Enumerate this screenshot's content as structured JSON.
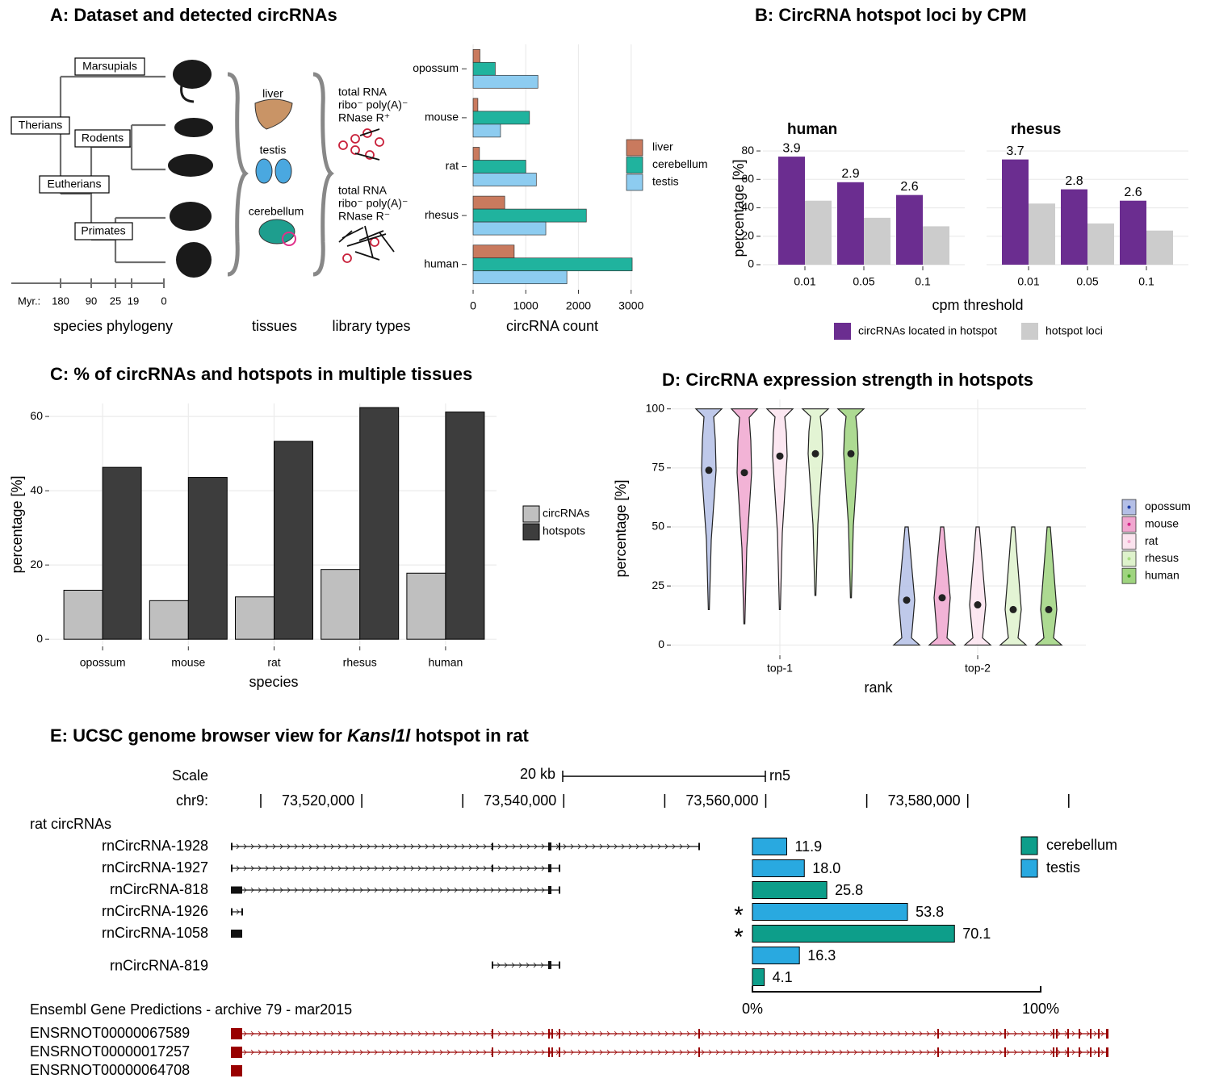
{
  "chart_data": [
    {
      "type": "hbar",
      "title": "A: Dataset and detected circRNAs",
      "categories": [
        "opossum",
        "mouse",
        "rat",
        "rhesus",
        "human"
      ],
      "series": [
        {
          "name": "liver",
          "color": "#c97a5e",
          "values": [
            130,
            90,
            120,
            600,
            780
          ]
        },
        {
          "name": "cerebellum",
          "color": "#20b39e",
          "values": [
            420,
            1070,
            1000,
            2150,
            3020
          ]
        },
        {
          "name": "testis",
          "color": "#8dccf0",
          "values": [
            1230,
            520,
            1200,
            1380,
            1780
          ]
        }
      ],
      "xlabel": "circRNA count",
      "xlim": [
        -100,
        3280
      ],
      "xticks": [
        0,
        1000,
        2000,
        3000
      ],
      "grid": true
    },
    {
      "type": "facet-bar",
      "title": "B: CircRNA hotspot loci by CPM",
      "xlabel": "cpm threshold",
      "ylabel": "percentage [%]",
      "categories": [
        "0.01",
        "0.05",
        "0.1"
      ],
      "series": [
        {
          "name": "circRNAs located in hotspot",
          "color": "#6b2d90"
        },
        {
          "name": "hotspot loci",
          "color": "#cccccc"
        }
      ],
      "facets": [
        {
          "name": "human",
          "values": [
            [
              76,
              58,
              49
            ],
            [
              45,
              33,
              27
            ]
          ],
          "annotations": [
            "3.9",
            "2.9",
            "2.6"
          ]
        },
        {
          "name": "rhesus",
          "values": [
            [
              74,
              53,
              45
            ],
            [
              43,
              29,
              24
            ]
          ],
          "annotations": [
            "3.7",
            "2.8",
            "2.6"
          ]
        }
      ],
      "ylim": [
        0,
        84
      ],
      "yticks": [
        0,
        20,
        40,
        60,
        80
      ]
    },
    {
      "type": "bar",
      "title": "C: % of circRNAs and hotspots in multiple tissues",
      "xlabel": "species",
      "ylabel": "percentage [%]",
      "categories": [
        "opossum",
        "mouse",
        "rat",
        "rhesus",
        "human"
      ],
      "series": [
        {
          "name": "circRNAs",
          "color": "#bfbfbf",
          "values": [
            13.2,
            10.4,
            11.4,
            18.8,
            17.8
          ]
        },
        {
          "name": "hotspots",
          "color": "#3d3d3d",
          "values": [
            46.3,
            43.6,
            53.3,
            62.4,
            61.2
          ]
        }
      ],
      "ylim": [
        -1.7,
        63.5
      ],
      "yticks": [
        0,
        20,
        40,
        60
      ],
      "grid": true
    },
    {
      "type": "violin",
      "title": "D: CircRNA expression strength in hotspots",
      "xlabel": "rank",
      "ylabel": "percentage [%]",
      "categories": [
        "top-1",
        "top-2"
      ],
      "series": [
        {
          "name": "opossum",
          "color": "#1f3fa8",
          "fill": "#b4bfe6",
          "values": [
            74,
            19
          ],
          "min": [
            15,
            0
          ],
          "max": [
            100,
            50
          ]
        },
        {
          "name": "mouse",
          "color": "#d4268a",
          "fill": "#f0a6cf",
          "values": [
            73,
            20
          ],
          "min": [
            9,
            0
          ],
          "max": [
            100,
            50
          ]
        },
        {
          "name": "rat",
          "color": "#f0a8cd",
          "fill": "#fbe3ee",
          "values": [
            80,
            17
          ],
          "min": [
            15,
            0
          ],
          "max": [
            100,
            50
          ]
        },
        {
          "name": "rhesus",
          "color": "#a9dd84",
          "fill": "#def2cc",
          "values": [
            81,
            15
          ],
          "min": [
            21,
            0
          ],
          "max": [
            100,
            50
          ]
        },
        {
          "name": "human",
          "color": "#3e9e1e",
          "fill": "#9fd47f",
          "values": [
            81,
            15
          ],
          "min": [
            20,
            0
          ],
          "max": [
            100,
            50
          ]
        }
      ],
      "ylim": [
        -4,
        104
      ],
      "yticks": [
        0,
        25,
        50,
        75,
        100
      ],
      "grid": true
    },
    {
      "type": "hbar-rows",
      "title": [
        "E: UCSC genome browser view for ",
        "Kansl1l",
        " hotspot in rat"
      ],
      "track": "rat circRNAs",
      "categories": [
        "rnCircRNA-1928",
        "rnCircRNA-1927",
        "rnCircRNA-818",
        "rnCircRNA-1926",
        "rnCircRNA-1058",
        "rnCircRNA-819",
        null
      ],
      "values": [
        11.9,
        18.0,
        25.8,
        53.8,
        70.1,
        16.3,
        4.1
      ],
      "value_labels": [
        "11.9",
        "18.0",
        "25.8",
        "53.8",
        "70.1",
        "16.3",
        "4.1"
      ],
      "tissue": [
        "testis",
        "testis",
        "cerebellum",
        "testis",
        "cerebellum",
        "testis",
        "cerebellum"
      ],
      "stars": [
        null,
        null,
        null,
        "*",
        "*",
        null,
        null
      ],
      "series": [
        {
          "name": "cerebellum",
          "color": "#0d9e8a"
        },
        {
          "name": "testis",
          "color": "#29a9e0"
        }
      ],
      "xlim": [
        0,
        100
      ],
      "xticks": [
        {
          "value": 0,
          "label": "0%"
        },
        {
          "value": 100,
          "label": "100%"
        }
      ]
    }
  ],
  "phylogeny": {
    "clades": [
      "Marsupials",
      "Therians",
      "Rodents",
      "Eutherians",
      "Primates"
    ],
    "axis_label": "Myr.:",
    "times": [
      "180",
      "90",
      "25",
      "19",
      "0"
    ],
    "caption": "species phylogeny"
  },
  "tissues": {
    "names": [
      "liver",
      "testis",
      "cerebellum"
    ],
    "caption": "tissues"
  },
  "libraries": {
    "types": [
      [
        "total RNA",
        "ribo⁻ poly(A)⁻",
        "RNase R⁺"
      ],
      [
        "total RNA",
        "ribo⁻ poly(A)⁻",
        "RNase R⁻"
      ]
    ],
    "caption": "library types"
  },
  "browser": {
    "scale": "Scale",
    "scale_bar": "20 kb",
    "assembly": "rn5",
    "chrom": "chr9:",
    "positions": [
      "73,520,000",
      "73,540,000",
      "73,560,000",
      "73,580,000"
    ],
    "gene_track": "Ensembl Gene Predictions - archive 79 - mar2015",
    "transcripts": [
      "ENSRNOT00000067589",
      "ENSRNOT00000017257",
      "ENSRNOT00000064708"
    ]
  }
}
